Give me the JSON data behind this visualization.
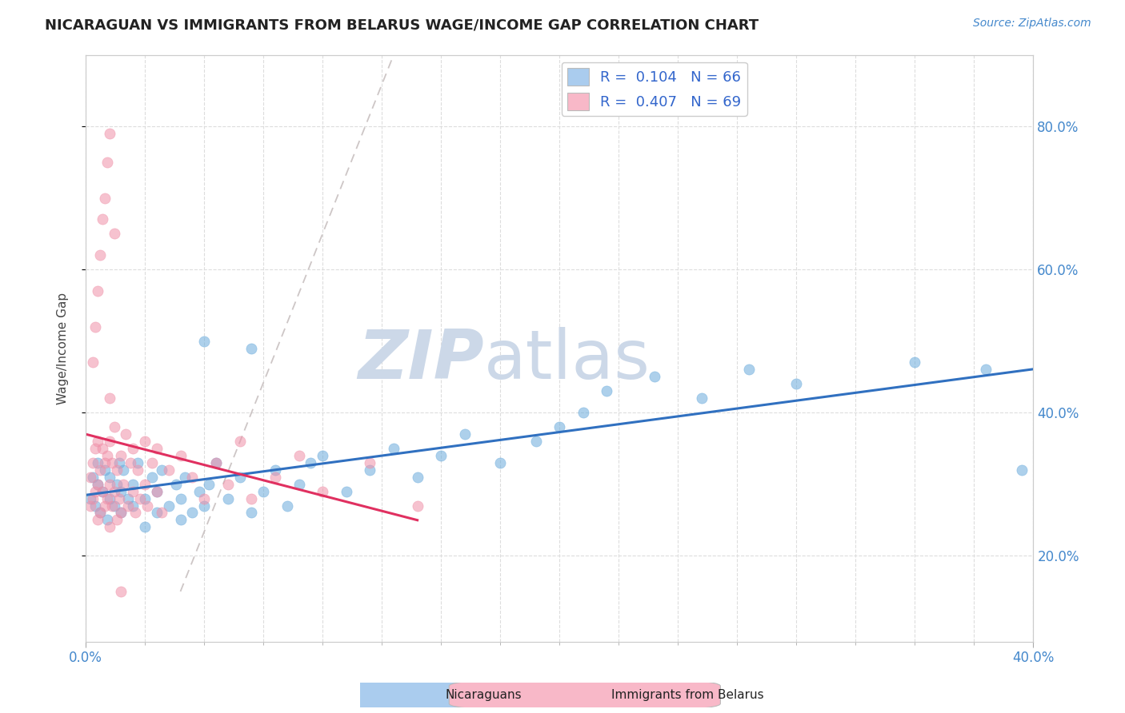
{
  "title": "NICARAGUAN VS IMMIGRANTS FROM BELARUS WAGE/INCOME GAP CORRELATION CHART",
  "source": "Source: ZipAtlas.com",
  "ylabel": "Wage/Income Gap",
  "y_ticks": [
    0.2,
    0.4,
    0.6,
    0.8
  ],
  "y_tick_labels": [
    "20.0%",
    "40.0%",
    "60.0%",
    "80.0%"
  ],
  "legend1_label": "R =  0.104   N = 66",
  "legend2_label": "R =  0.407   N = 69",
  "legend1_color": "#aaccee",
  "legend2_color": "#f8b8c8",
  "blue_color": "#6aabdc",
  "pink_color": "#f090a8",
  "red_line_color": "#e03060",
  "blue_line_color": "#3070c0",
  "ref_line_color": "#c8c0c0",
  "watermark_color": "#ccd8e8",
  "watermark_text": "ZIPatlas",
  "title_fontsize": 13,
  "source_fontsize": 10,
  "xmin": 0.0,
  "xmax": 0.4,
  "ymin": 0.08,
  "ymax": 0.9,
  "blue_scatter_x": [
    0.002,
    0.003,
    0.004,
    0.005,
    0.005,
    0.006,
    0.007,
    0.008,
    0.009,
    0.01,
    0.01,
    0.012,
    0.013,
    0.014,
    0.015,
    0.015,
    0.016,
    0.018,
    0.02,
    0.02,
    0.022,
    0.025,
    0.025,
    0.028,
    0.03,
    0.03,
    0.032,
    0.035,
    0.038,
    0.04,
    0.04,
    0.042,
    0.045,
    0.048,
    0.05,
    0.052,
    0.055,
    0.06,
    0.065,
    0.07,
    0.075,
    0.08,
    0.085,
    0.09,
    0.095,
    0.1,
    0.11,
    0.12,
    0.13,
    0.14,
    0.15,
    0.16,
    0.175,
    0.19,
    0.2,
    0.21,
    0.22,
    0.24,
    0.26,
    0.28,
    0.3,
    0.35,
    0.38,
    0.395,
    0.05,
    0.07
  ],
  "blue_scatter_y": [
    0.28,
    0.31,
    0.27,
    0.3,
    0.33,
    0.26,
    0.29,
    0.32,
    0.25,
    0.28,
    0.31,
    0.27,
    0.3,
    0.33,
    0.26,
    0.29,
    0.32,
    0.28,
    0.27,
    0.3,
    0.33,
    0.24,
    0.28,
    0.31,
    0.26,
    0.29,
    0.32,
    0.27,
    0.3,
    0.25,
    0.28,
    0.31,
    0.26,
    0.29,
    0.27,
    0.3,
    0.33,
    0.28,
    0.31,
    0.26,
    0.29,
    0.32,
    0.27,
    0.3,
    0.33,
    0.34,
    0.29,
    0.32,
    0.35,
    0.31,
    0.34,
    0.37,
    0.33,
    0.36,
    0.38,
    0.4,
    0.43,
    0.45,
    0.42,
    0.46,
    0.44,
    0.47,
    0.46,
    0.32,
    0.5,
    0.49
  ],
  "pink_scatter_x": [
    0.002,
    0.002,
    0.003,
    0.003,
    0.004,
    0.004,
    0.005,
    0.005,
    0.005,
    0.006,
    0.006,
    0.007,
    0.007,
    0.008,
    0.008,
    0.009,
    0.009,
    0.01,
    0.01,
    0.01,
    0.01,
    0.011,
    0.011,
    0.012,
    0.012,
    0.013,
    0.013,
    0.014,
    0.015,
    0.015,
    0.016,
    0.017,
    0.018,
    0.019,
    0.02,
    0.02,
    0.021,
    0.022,
    0.023,
    0.025,
    0.025,
    0.026,
    0.028,
    0.03,
    0.03,
    0.032,
    0.035,
    0.04,
    0.045,
    0.05,
    0.055,
    0.06,
    0.065,
    0.07,
    0.08,
    0.09,
    0.1,
    0.12,
    0.14,
    0.003,
    0.004,
    0.005,
    0.006,
    0.007,
    0.008,
    0.009,
    0.01,
    0.012,
    0.015
  ],
  "pink_scatter_y": [
    0.27,
    0.31,
    0.28,
    0.33,
    0.29,
    0.35,
    0.25,
    0.3,
    0.36,
    0.26,
    0.32,
    0.29,
    0.35,
    0.27,
    0.33,
    0.28,
    0.34,
    0.24,
    0.3,
    0.36,
    0.42,
    0.27,
    0.33,
    0.29,
    0.38,
    0.25,
    0.32,
    0.28,
    0.26,
    0.34,
    0.3,
    0.37,
    0.27,
    0.33,
    0.29,
    0.35,
    0.26,
    0.32,
    0.28,
    0.3,
    0.36,
    0.27,
    0.33,
    0.29,
    0.35,
    0.26,
    0.32,
    0.34,
    0.31,
    0.28,
    0.33,
    0.3,
    0.36,
    0.28,
    0.31,
    0.34,
    0.29,
    0.33,
    0.27,
    0.47,
    0.52,
    0.57,
    0.62,
    0.67,
    0.7,
    0.75,
    0.79,
    0.65,
    0.15
  ]
}
